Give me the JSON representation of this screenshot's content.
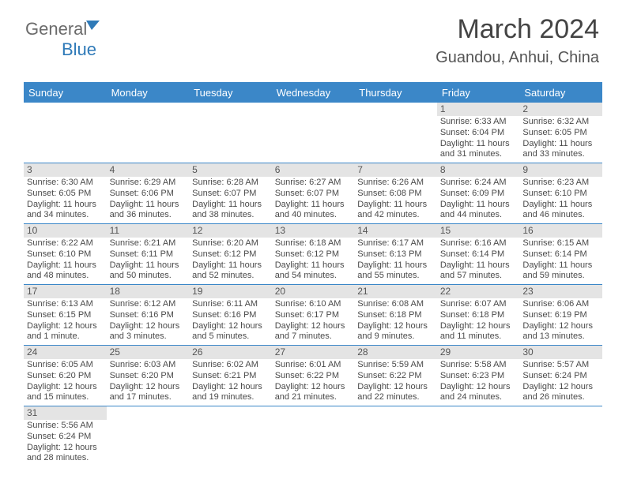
{
  "logo": {
    "part1": "General",
    "part2": "Blue"
  },
  "title": "March 2024",
  "location": "Guandou, Anhui, China",
  "colors": {
    "header_bg": "#3b87c8",
    "header_fg": "#ffffff",
    "daynum_bg": "#e4e4e4",
    "text": "#4a4a4a",
    "logo_gray": "#6b6b6b",
    "logo_blue": "#2f7ab8"
  },
  "dayHeaders": [
    "Sunday",
    "Monday",
    "Tuesday",
    "Wednesday",
    "Thursday",
    "Friday",
    "Saturday"
  ],
  "weeks": [
    [
      null,
      null,
      null,
      null,
      null,
      {
        "n": "1",
        "sr": "Sunrise: 6:33 AM",
        "ss": "Sunset: 6:04 PM",
        "d1": "Daylight: 11 hours",
        "d2": "and 31 minutes."
      },
      {
        "n": "2",
        "sr": "Sunrise: 6:32 AM",
        "ss": "Sunset: 6:05 PM",
        "d1": "Daylight: 11 hours",
        "d2": "and 33 minutes."
      }
    ],
    [
      {
        "n": "3",
        "sr": "Sunrise: 6:30 AM",
        "ss": "Sunset: 6:05 PM",
        "d1": "Daylight: 11 hours",
        "d2": "and 34 minutes."
      },
      {
        "n": "4",
        "sr": "Sunrise: 6:29 AM",
        "ss": "Sunset: 6:06 PM",
        "d1": "Daylight: 11 hours",
        "d2": "and 36 minutes."
      },
      {
        "n": "5",
        "sr": "Sunrise: 6:28 AM",
        "ss": "Sunset: 6:07 PM",
        "d1": "Daylight: 11 hours",
        "d2": "and 38 minutes."
      },
      {
        "n": "6",
        "sr": "Sunrise: 6:27 AM",
        "ss": "Sunset: 6:07 PM",
        "d1": "Daylight: 11 hours",
        "d2": "and 40 minutes."
      },
      {
        "n": "7",
        "sr": "Sunrise: 6:26 AM",
        "ss": "Sunset: 6:08 PM",
        "d1": "Daylight: 11 hours",
        "d2": "and 42 minutes."
      },
      {
        "n": "8",
        "sr": "Sunrise: 6:24 AM",
        "ss": "Sunset: 6:09 PM",
        "d1": "Daylight: 11 hours",
        "d2": "and 44 minutes."
      },
      {
        "n": "9",
        "sr": "Sunrise: 6:23 AM",
        "ss": "Sunset: 6:10 PM",
        "d1": "Daylight: 11 hours",
        "d2": "and 46 minutes."
      }
    ],
    [
      {
        "n": "10",
        "sr": "Sunrise: 6:22 AM",
        "ss": "Sunset: 6:10 PM",
        "d1": "Daylight: 11 hours",
        "d2": "and 48 minutes."
      },
      {
        "n": "11",
        "sr": "Sunrise: 6:21 AM",
        "ss": "Sunset: 6:11 PM",
        "d1": "Daylight: 11 hours",
        "d2": "and 50 minutes."
      },
      {
        "n": "12",
        "sr": "Sunrise: 6:20 AM",
        "ss": "Sunset: 6:12 PM",
        "d1": "Daylight: 11 hours",
        "d2": "and 52 minutes."
      },
      {
        "n": "13",
        "sr": "Sunrise: 6:18 AM",
        "ss": "Sunset: 6:12 PM",
        "d1": "Daylight: 11 hours",
        "d2": "and 54 minutes."
      },
      {
        "n": "14",
        "sr": "Sunrise: 6:17 AM",
        "ss": "Sunset: 6:13 PM",
        "d1": "Daylight: 11 hours",
        "d2": "and 55 minutes."
      },
      {
        "n": "15",
        "sr": "Sunrise: 6:16 AM",
        "ss": "Sunset: 6:14 PM",
        "d1": "Daylight: 11 hours",
        "d2": "and 57 minutes."
      },
      {
        "n": "16",
        "sr": "Sunrise: 6:15 AM",
        "ss": "Sunset: 6:14 PM",
        "d1": "Daylight: 11 hours",
        "d2": "and 59 minutes."
      }
    ],
    [
      {
        "n": "17",
        "sr": "Sunrise: 6:13 AM",
        "ss": "Sunset: 6:15 PM",
        "d1": "Daylight: 12 hours",
        "d2": "and 1 minute."
      },
      {
        "n": "18",
        "sr": "Sunrise: 6:12 AM",
        "ss": "Sunset: 6:16 PM",
        "d1": "Daylight: 12 hours",
        "d2": "and 3 minutes."
      },
      {
        "n": "19",
        "sr": "Sunrise: 6:11 AM",
        "ss": "Sunset: 6:16 PM",
        "d1": "Daylight: 12 hours",
        "d2": "and 5 minutes."
      },
      {
        "n": "20",
        "sr": "Sunrise: 6:10 AM",
        "ss": "Sunset: 6:17 PM",
        "d1": "Daylight: 12 hours",
        "d2": "and 7 minutes."
      },
      {
        "n": "21",
        "sr": "Sunrise: 6:08 AM",
        "ss": "Sunset: 6:18 PM",
        "d1": "Daylight: 12 hours",
        "d2": "and 9 minutes."
      },
      {
        "n": "22",
        "sr": "Sunrise: 6:07 AM",
        "ss": "Sunset: 6:18 PM",
        "d1": "Daylight: 12 hours",
        "d2": "and 11 minutes."
      },
      {
        "n": "23",
        "sr": "Sunrise: 6:06 AM",
        "ss": "Sunset: 6:19 PM",
        "d1": "Daylight: 12 hours",
        "d2": "and 13 minutes."
      }
    ],
    [
      {
        "n": "24",
        "sr": "Sunrise: 6:05 AM",
        "ss": "Sunset: 6:20 PM",
        "d1": "Daylight: 12 hours",
        "d2": "and 15 minutes."
      },
      {
        "n": "25",
        "sr": "Sunrise: 6:03 AM",
        "ss": "Sunset: 6:20 PM",
        "d1": "Daylight: 12 hours",
        "d2": "and 17 minutes."
      },
      {
        "n": "26",
        "sr": "Sunrise: 6:02 AM",
        "ss": "Sunset: 6:21 PM",
        "d1": "Daylight: 12 hours",
        "d2": "and 19 minutes."
      },
      {
        "n": "27",
        "sr": "Sunrise: 6:01 AM",
        "ss": "Sunset: 6:22 PM",
        "d1": "Daylight: 12 hours",
        "d2": "and 21 minutes."
      },
      {
        "n": "28",
        "sr": "Sunrise: 5:59 AM",
        "ss": "Sunset: 6:22 PM",
        "d1": "Daylight: 12 hours",
        "d2": "and 22 minutes."
      },
      {
        "n": "29",
        "sr": "Sunrise: 5:58 AM",
        "ss": "Sunset: 6:23 PM",
        "d1": "Daylight: 12 hours",
        "d2": "and 24 minutes."
      },
      {
        "n": "30",
        "sr": "Sunrise: 5:57 AM",
        "ss": "Sunset: 6:24 PM",
        "d1": "Daylight: 12 hours",
        "d2": "and 26 minutes."
      }
    ],
    [
      {
        "n": "31",
        "sr": "Sunrise: 5:56 AM",
        "ss": "Sunset: 6:24 PM",
        "d1": "Daylight: 12 hours",
        "d2": "and 28 minutes."
      },
      null,
      null,
      null,
      null,
      null,
      null
    ]
  ]
}
